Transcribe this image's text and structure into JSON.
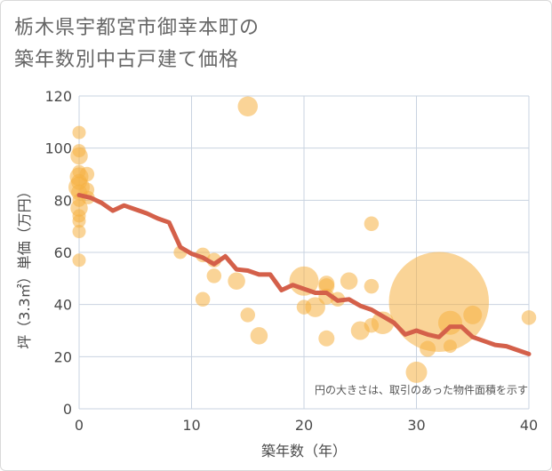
{
  "chart_data": {
    "type": "scatter",
    "title_lines": [
      "栃木県宇都宮市御幸本町の",
      "築年数別中古戸建て価格"
    ],
    "xlabel": "築年数（年）",
    "ylabel": "坪（3.3㎡）単価（万円）",
    "xlim": [
      0,
      40
    ],
    "ylim": [
      0,
      120
    ],
    "x_ticks": [
      0,
      10,
      20,
      30,
      40
    ],
    "y_ticks": [
      0,
      20,
      40,
      60,
      80,
      100,
      120
    ],
    "grid": true,
    "note": "円の大きさは、取引のあった物件面積を示す",
    "colors": {
      "bubble": "#f5b041",
      "line": "#d4604a",
      "grid": "#c9d3e0",
      "text": "#4a4a4a"
    },
    "points": [
      {
        "x": 0,
        "y": 106,
        "s": 1
      },
      {
        "x": 0,
        "y": 99,
        "s": 1
      },
      {
        "x": 0,
        "y": 97,
        "s": 1.3
      },
      {
        "x": 0,
        "y": 91,
        "s": 1
      },
      {
        "x": 0,
        "y": 89,
        "s": 1.4
      },
      {
        "x": 0,
        "y": 87,
        "s": 1.2
      },
      {
        "x": 0,
        "y": 85,
        "s": 1.6
      },
      {
        "x": 0,
        "y": 83,
        "s": 1.2
      },
      {
        "x": 0,
        "y": 80,
        "s": 1
      },
      {
        "x": 0,
        "y": 77,
        "s": 1.3
      },
      {
        "x": 0,
        "y": 74,
        "s": 1
      },
      {
        "x": 0,
        "y": 72,
        "s": 1
      },
      {
        "x": 0,
        "y": 68,
        "s": 1
      },
      {
        "x": 0,
        "y": 57,
        "s": 1
      },
      {
        "x": 0.7,
        "y": 90,
        "s": 1.1
      },
      {
        "x": 0.7,
        "y": 84,
        "s": 1.1
      },
      {
        "x": 0.8,
        "y": 81,
        "s": 1
      },
      {
        "x": 9,
        "y": 60,
        "s": 1
      },
      {
        "x": 11,
        "y": 59,
        "s": 1.1
      },
      {
        "x": 11,
        "y": 42,
        "s": 1.1
      },
      {
        "x": 12,
        "y": 57,
        "s": 1.1
      },
      {
        "x": 12,
        "y": 51,
        "s": 1.1
      },
      {
        "x": 14,
        "y": 49,
        "s": 1.3
      },
      {
        "x": 15,
        "y": 116,
        "s": 1.5
      },
      {
        "x": 15,
        "y": 36,
        "s": 1.1
      },
      {
        "x": 16,
        "y": 28,
        "s": 1.3
      },
      {
        "x": 20,
        "y": 49,
        "s": 2.2
      },
      {
        "x": 20,
        "y": 39,
        "s": 1.1
      },
      {
        "x": 21,
        "y": 39,
        "s": 1.5
      },
      {
        "x": 22,
        "y": 48,
        "s": 1.2
      },
      {
        "x": 22,
        "y": 47,
        "s": 1.2
      },
      {
        "x": 22,
        "y": 43,
        "s": 1.2
      },
      {
        "x": 22,
        "y": 27,
        "s": 1.2
      },
      {
        "x": 23,
        "y": 42,
        "s": 1.1
      },
      {
        "x": 24,
        "y": 49,
        "s": 1.3
      },
      {
        "x": 25,
        "y": 30,
        "s": 1.4
      },
      {
        "x": 26,
        "y": 71,
        "s": 1.1
      },
      {
        "x": 26,
        "y": 47,
        "s": 1.1
      },
      {
        "x": 26,
        "y": 32,
        "s": 1.1
      },
      {
        "x": 27,
        "y": 33,
        "s": 1.7
      },
      {
        "x": 30,
        "y": 14,
        "s": 1.6
      },
      {
        "x": 31,
        "y": 23,
        "s": 1.2
      },
      {
        "x": 32,
        "y": 41,
        "s": 7.5
      },
      {
        "x": 33,
        "y": 33,
        "s": 1.8
      },
      {
        "x": 33,
        "y": 24,
        "s": 1
      },
      {
        "x": 35,
        "y": 36,
        "s": 1.4
      },
      {
        "x": 40,
        "y": 35,
        "s": 1.1
      }
    ],
    "trend_line": {
      "x": [
        0,
        1,
        2,
        3,
        4,
        5,
        6,
        7,
        8,
        9,
        10,
        11,
        12,
        13,
        14,
        15,
        16,
        17,
        18,
        19,
        20,
        21,
        22,
        23,
        24,
        25,
        26,
        27,
        28,
        29,
        30,
        31,
        32,
        33,
        34,
        35,
        36,
        37,
        38,
        39,
        40
      ],
      "y": [
        82,
        81,
        79,
        76,
        78,
        76.5,
        75,
        73,
        71.5,
        62,
        59.5,
        58,
        55.5,
        58.5,
        53.5,
        53,
        51.5,
        51.5,
        45.5,
        47.5,
        46,
        44.5,
        44.5,
        41.5,
        42,
        39.5,
        38,
        35.5,
        33,
        28.5,
        30,
        28.5,
        27.5,
        31.5,
        31.5,
        27.5,
        26,
        24.5,
        24,
        22.5,
        21
      ]
    }
  }
}
